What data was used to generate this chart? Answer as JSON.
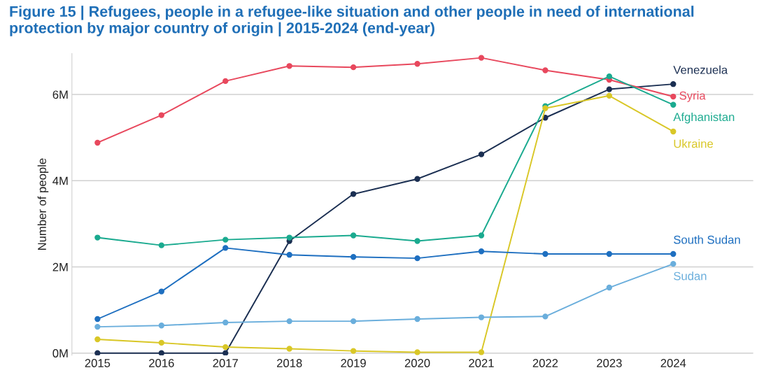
{
  "chart_data": {
    "type": "line",
    "title": "Figure 15 | Refugees, people in a refugee-like situation and other people in need of international protection by major country of origin | 2015-2024 (end-year)",
    "ylabel": "Number of people",
    "x": [
      2015,
      2016,
      2017,
      2018,
      2019,
      2020,
      2021,
      2022,
      2023,
      2024
    ],
    "xlim": [
      2014.6,
      2025.25
    ],
    "xticks": [
      2015,
      2016,
      2017,
      2018,
      2019,
      2020,
      2021,
      2022,
      2023,
      2024
    ],
    "ylim": [
      -0.05,
      6.95
    ],
    "yticks": [
      {
        "value": 0,
        "label": "0M"
      },
      {
        "value": 2,
        "label": "2M"
      },
      {
        "value": 4,
        "label": "4M"
      },
      {
        "value": 6,
        "label": "6M"
      }
    ],
    "grid": "y",
    "legend": false,
    "marker": "circle",
    "line_style": "solid",
    "series": [
      {
        "name": "Venezuela",
        "color": "#1b2f52",
        "values": [
          0,
          0,
          0,
          2.6,
          3.69,
          4.04,
          4.61,
          5.46,
          6.12,
          6.24
        ]
      },
      {
        "name": "Syria",
        "color": "#e8485d",
        "values": [
          4.88,
          5.52,
          6.31,
          6.66,
          6.63,
          6.71,
          6.85,
          6.56,
          6.34,
          5.95
        ]
      },
      {
        "name": "Afghanistan",
        "color": "#1aaa8f",
        "values": [
          2.68,
          2.5,
          2.63,
          2.68,
          2.73,
          2.6,
          2.73,
          5.73,
          6.42,
          5.76
        ]
      },
      {
        "name": "Ukraine",
        "color": "#d9c727",
        "values": [
          0.32,
          0.24,
          0.14,
          0.1,
          0.05,
          0.02,
          0.02,
          5.68,
          5.97,
          5.14
        ]
      },
      {
        "name": "South Sudan",
        "color": "#1e6fc0",
        "values": [
          0.79,
          1.43,
          2.44,
          2.28,
          2.23,
          2.2,
          2.36,
          2.3,
          2.3,
          2.3
        ]
      },
      {
        "name": "Sudan",
        "color": "#6aaedc",
        "values": [
          0.61,
          0.64,
          0.71,
          0.74,
          0.74,
          0.79,
          0.83,
          0.85,
          1.52,
          2.07
        ]
      }
    ]
  }
}
